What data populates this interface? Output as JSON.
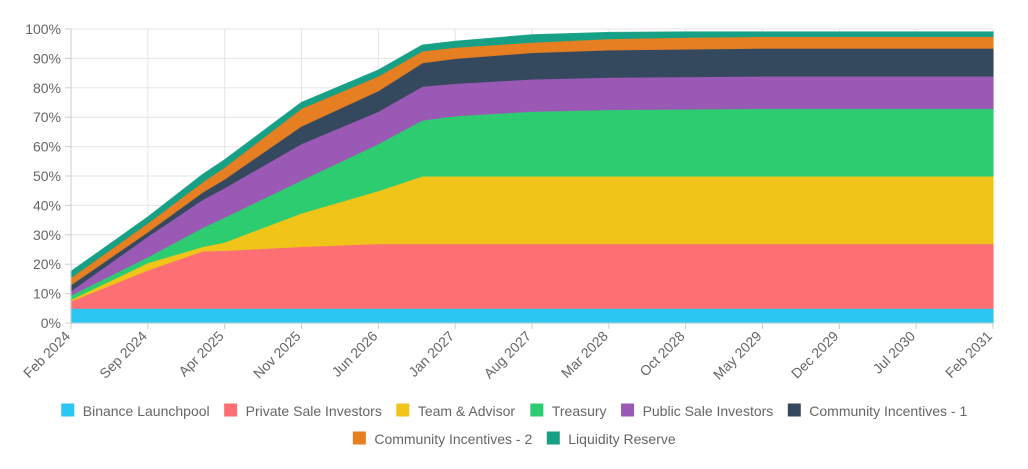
{
  "chart_data": {
    "type": "area",
    "stacked": true,
    "title": "",
    "xlabel": "",
    "ylabel": "",
    "ylim": [
      0,
      100
    ],
    "y_ticks": [
      "0%",
      "10%",
      "20%",
      "30%",
      "40%",
      "50%",
      "60%",
      "70%",
      "80%",
      "90%",
      "100%"
    ],
    "x_range_months": [
      0,
      84
    ],
    "x_ticks": [
      {
        "label": "Feb 2024",
        "month": 0
      },
      {
        "label": "Sep 2024",
        "month": 7
      },
      {
        "label": "Apr 2025",
        "month": 14
      },
      {
        "label": "Nov 2025",
        "month": 21
      },
      {
        "label": "Jun 2026",
        "month": 28
      },
      {
        "label": "Jan 2027",
        "month": 35
      },
      {
        "label": "Aug 2027",
        "month": 42
      },
      {
        "label": "Mar 2028",
        "month": 49
      },
      {
        "label": "Oct 2028",
        "month": 56
      },
      {
        "label": "May 2029",
        "month": 63
      },
      {
        "label": "Dec 2029",
        "month": 70
      },
      {
        "label": "Jul 2030",
        "month": 77
      },
      {
        "label": "Feb 2031",
        "month": 84
      }
    ],
    "grid": true,
    "legend_position": "bottom",
    "x_months": [
      0,
      7,
      12,
      14,
      21,
      28,
      32,
      35,
      42,
      49,
      56,
      63,
      70,
      77,
      84
    ],
    "series": [
      {
        "name": "Binance Launchpool",
        "color": "#2bc6f2",
        "values": [
          5,
          5,
          5,
          5,
          5,
          5,
          5,
          5,
          5,
          5,
          5,
          5,
          5,
          5,
          5
        ]
      },
      {
        "name": "Private Sale Investors",
        "color": "#fc6f72",
        "values": [
          2.5,
          13,
          19.5,
          19.7,
          21,
          22,
          22,
          22,
          22,
          22,
          22,
          22,
          22,
          22,
          22
        ]
      },
      {
        "name": "Team & Advisor",
        "color": "#f0c419",
        "values": [
          0.5,
          2.5,
          1.5,
          2.8,
          11.4,
          18,
          23,
          23,
          23,
          23,
          23,
          23,
          23,
          23,
          23
        ]
      },
      {
        "name": "Treasury",
        "color": "#2ecc71",
        "values": [
          1.5,
          2,
          6.5,
          8.5,
          11.2,
          16,
          19,
          20.5,
          22,
          22.6,
          22.8,
          23,
          23,
          23,
          23
        ]
      },
      {
        "name": "Public Sale Investors",
        "color": "#9b59b6",
        "values": [
          1.5,
          7,
          9.5,
          10,
          12.4,
          11,
          11.5,
          11,
          11,
          11,
          11,
          11,
          11,
          11,
          11
        ]
      },
      {
        "name": "Community Incentives - 1",
        "color": "#34495e",
        "values": [
          2,
          1.5,
          2.5,
          3,
          6,
          7,
          8,
          8.5,
          9,
          9.3,
          9.4,
          9.5,
          9.5,
          9.5,
          9.5
        ]
      },
      {
        "name": "Community Incentives - 2",
        "color": "#e67e22",
        "values": [
          2.5,
          3,
          3.5,
          4,
          6,
          5,
          4,
          3.8,
          3.5,
          3.8,
          4,
          4,
          4,
          4,
          4
        ]
      },
      {
        "name": "Liquidity Reserve",
        "color": "#16a085",
        "values": [
          2,
          2,
          2.5,
          2.5,
          2,
          2,
          2,
          2,
          2.5,
          2.1,
          1.8,
          1.5,
          1.5,
          1.5,
          1.5
        ]
      }
    ]
  }
}
